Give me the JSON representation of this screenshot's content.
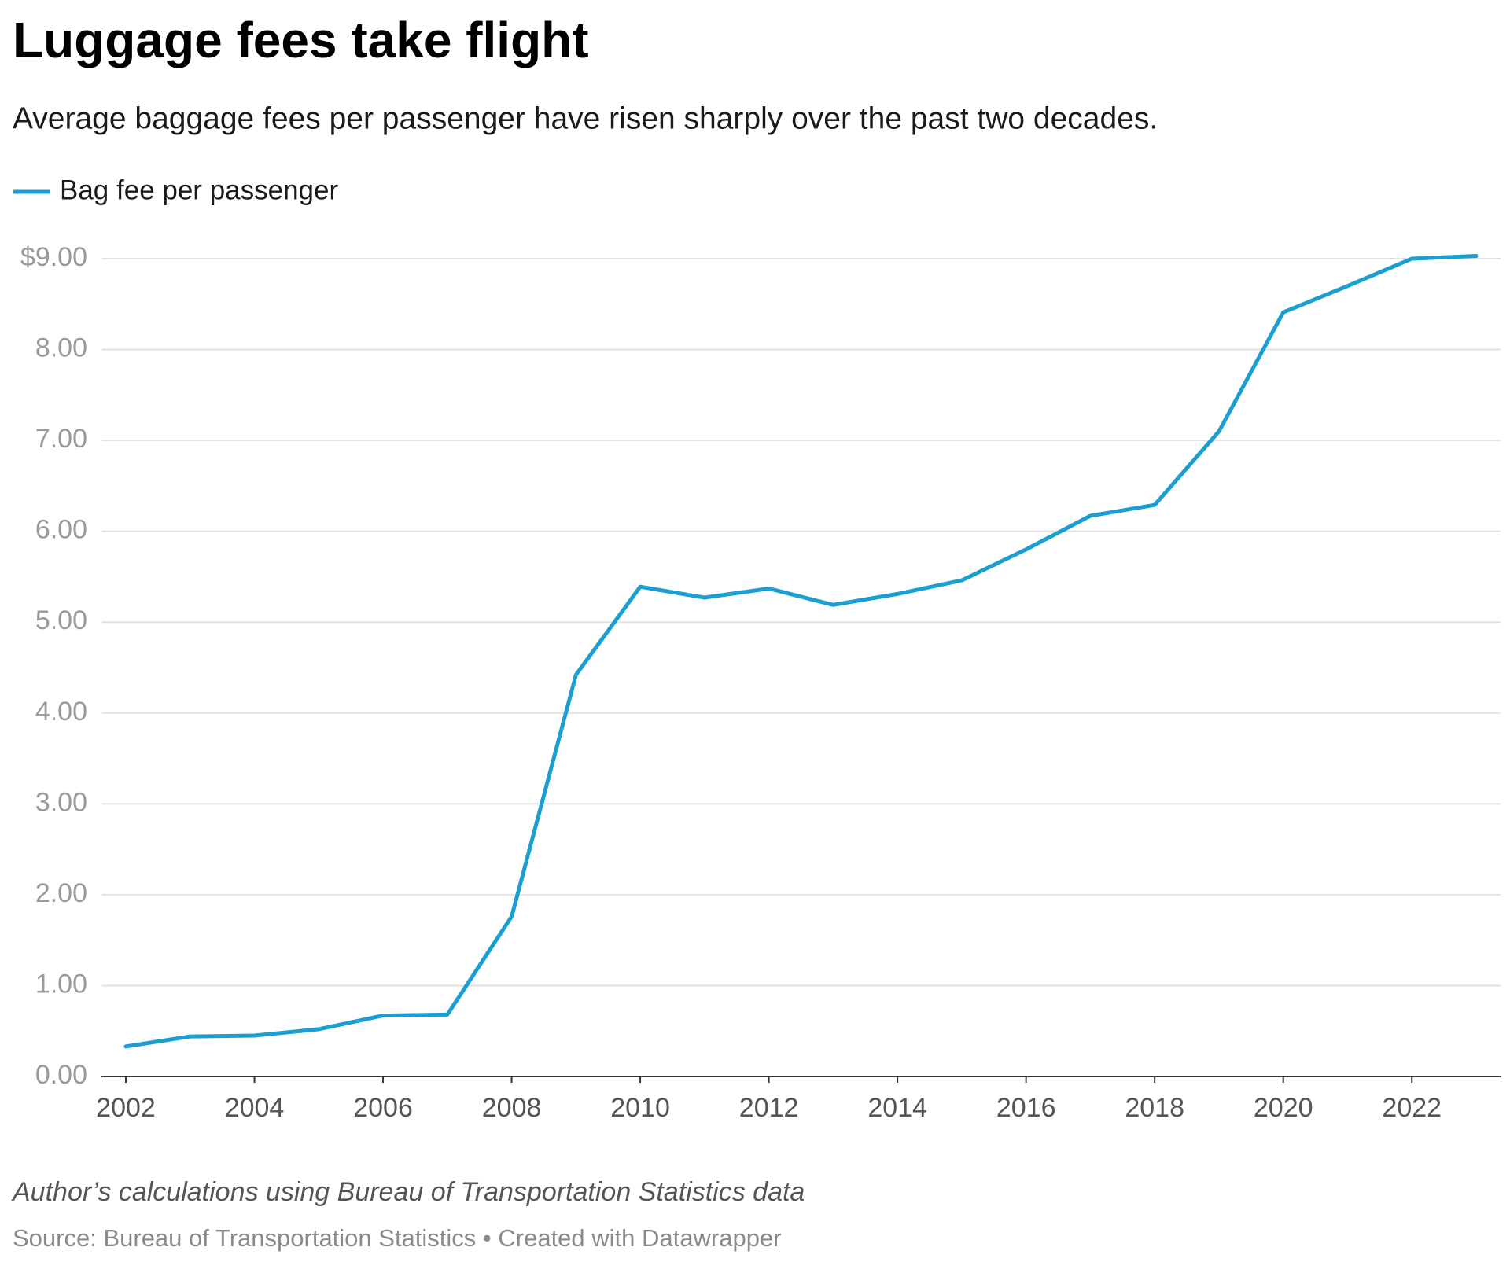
{
  "chart_data": {
    "type": "line",
    "title": "Luggage fees take flight",
    "subtitle": "Average baggage fees per passenger have risen sharply over the past two decades.",
    "note": "Author’s calculations using Bureau of Transportation Statistics data",
    "source": "Source: Bureau of Transportation Statistics • Created with Datawrapper",
    "x": [
      2002,
      2003,
      2004,
      2005,
      2006,
      2007,
      2008,
      2009,
      2010,
      2011,
      2012,
      2013,
      2014,
      2015,
      2016,
      2017,
      2018,
      2019,
      2020,
      2021,
      2022,
      2023
    ],
    "series": [
      {
        "name": "Bag fee per passenger",
        "color": "#1a9fd0",
        "values": [
          0.33,
          0.44,
          0.45,
          0.52,
          0.67,
          0.68,
          1.76,
          4.42,
          5.39,
          5.27,
          5.37,
          5.19,
          5.31,
          5.46,
          5.8,
          6.17,
          6.29,
          7.1,
          8.41,
          8.7,
          9.0,
          9.03
        ]
      }
    ],
    "xlim": [
      2002,
      2023
    ],
    "xticks": [
      2002,
      2004,
      2006,
      2008,
      2010,
      2012,
      2014,
      2016,
      2018,
      2020,
      2022
    ],
    "ylim": [
      0,
      9
    ],
    "yticks": [
      {
        "value": 0,
        "label": "0.00"
      },
      {
        "value": 1,
        "label": "1.00"
      },
      {
        "value": 2,
        "label": "2.00"
      },
      {
        "value": 3,
        "label": "3.00"
      },
      {
        "value": 4,
        "label": "4.00"
      },
      {
        "value": 5,
        "label": "5.00"
      },
      {
        "value": 6,
        "label": "6.00"
      },
      {
        "value": 7,
        "label": "7.00"
      },
      {
        "value": 8,
        "label": "8.00"
      },
      {
        "value": 9,
        "label": "$9.00"
      }
    ],
    "grid": true,
    "legend": "top-left"
  }
}
